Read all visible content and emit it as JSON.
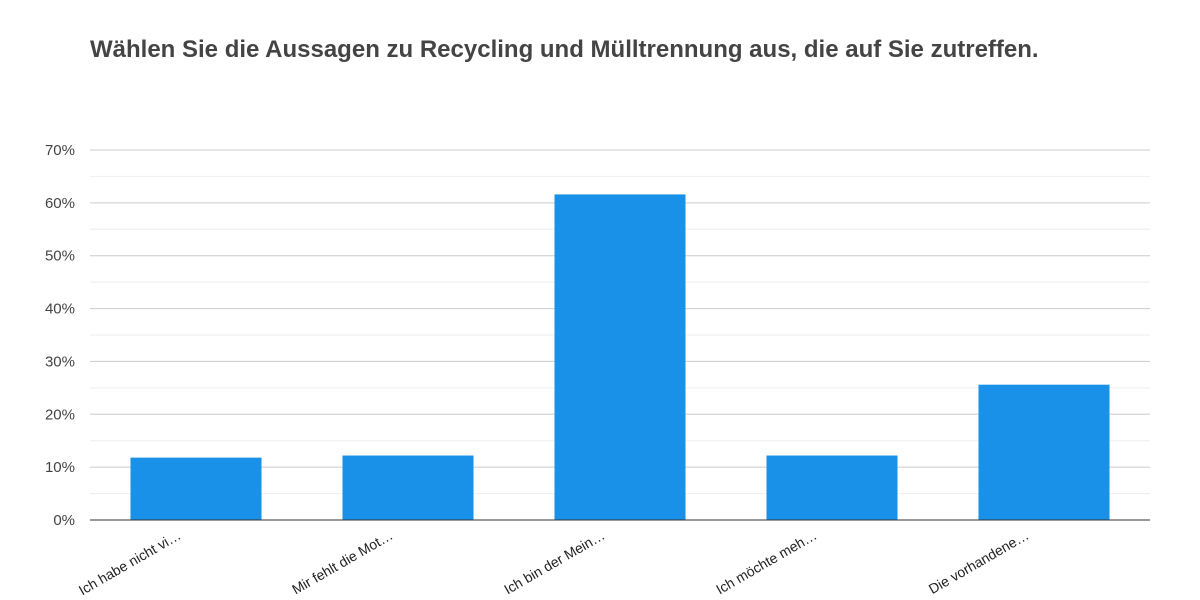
{
  "chart_data": {
    "type": "bar",
    "title": "Wählen Sie die Aussagen zu Recycling und Mülltrennung aus, die auf Sie zutreffen.",
    "xlabel": "",
    "ylabel": "",
    "categories": [
      "Ich habe nicht vi…",
      "Mir fehlt die Mot…",
      "Ich bin der Mein…",
      "Ich möchte meh…",
      "Die vorhandene…"
    ],
    "values": [
      11.8,
      12.2,
      61.6,
      12.2,
      25.6
    ],
    "ylim": [
      0,
      70
    ],
    "yticks": [
      0,
      10,
      20,
      30,
      40,
      50,
      60,
      70
    ],
    "ytick_labels": [
      "0%",
      "10%",
      "20%",
      "30%",
      "40%",
      "50%",
      "60%",
      "70%"
    ],
    "grid": true,
    "legend": "none",
    "colors": {
      "bar": "#1a91e8",
      "grid_major": "#cccccc",
      "grid_minor": "#eeeeee",
      "axis": "#333333"
    }
  }
}
